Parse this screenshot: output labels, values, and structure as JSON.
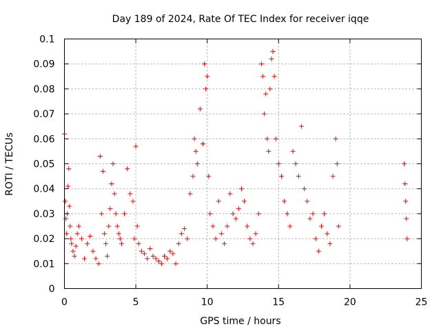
{
  "chart_data": {
    "type": "scatter",
    "title": "Day 189 of 2024, Rate Of TEC Index for receiver iqqe",
    "xlabel": "GPS time / hours",
    "ylabel": "ROTI / TECUs",
    "xlim": [
      0,
      25
    ],
    "ylim": [
      0,
      0.1
    ],
    "x_ticks": [
      0,
      5,
      10,
      15,
      20,
      25
    ],
    "y_ticks": [
      0,
      0.01,
      0.02,
      0.03,
      0.04,
      0.05,
      0.06,
      0.07,
      0.08,
      0.09,
      0.1
    ],
    "x_tick_labels": [
      "0",
      "5",
      "10",
      "15",
      "20",
      "25"
    ],
    "y_tick_labels": [
      "0",
      "0.01",
      "0.02",
      "0.03",
      "0.04",
      "0.05",
      "0.06",
      "0.07",
      "0.08",
      "0.09",
      "0.1"
    ],
    "grid": true,
    "marker": "+",
    "marker_color": "#ff0000",
    "series": [
      {
        "x": [
          0.0,
          0.05,
          0.1,
          0.15,
          0.2,
          0.25,
          0.3,
          0.35,
          0.4,
          0.45,
          0.5,
          0.6,
          0.7,
          0.8,
          0.9,
          1.0,
          1.2,
          1.4,
          1.6,
          1.8,
          2.0,
          2.2,
          2.4,
          2.5,
          2.6,
          2.7,
          2.8,
          2.9,
          3.0,
          3.1,
          3.2,
          3.3,
          3.4,
          3.5,
          3.6,
          3.7,
          3.8,
          3.9,
          4.0,
          4.2,
          4.4,
          4.6,
          4.8,
          4.9,
          5.0,
          5.1,
          5.2,
          5.4,
          5.6,
          5.8,
          6.0,
          6.2,
          6.4,
          6.6,
          6.8,
          7.0,
          7.2,
          7.4,
          7.6,
          7.8,
          8.0,
          8.2,
          8.4,
          8.6,
          8.8,
          9.0,
          9.1,
          9.2,
          9.3,
          9.5,
          9.7,
          9.8,
          9.9,
          10.0,
          10.1,
          10.2,
          10.4,
          10.6,
          10.8,
          11.0,
          11.2,
          11.4,
          11.6,
          11.8,
          12.0,
          12.2,
          12.4,
          12.6,
          12.8,
          13.0,
          13.2,
          13.4,
          13.6,
          13.8,
          13.9,
          14.0,
          14.1,
          14.2,
          14.3,
          14.4,
          14.5,
          14.6,
          14.7,
          14.8,
          15.0,
          15.2,
          15.4,
          15.6,
          15.8,
          16.0,
          16.2,
          16.4,
          16.6,
          16.8,
          17.0,
          17.2,
          17.4,
          17.6,
          17.8,
          18.0,
          18.2,
          18.4,
          18.6,
          18.8,
          19.0,
          19.1,
          19.2,
          23.8,
          23.85,
          23.9,
          23.95,
          24.0
        ],
        "y": [
          0.062,
          0.035,
          0.028,
          0.022,
          0.03,
          0.041,
          0.048,
          0.033,
          0.025,
          0.02,
          0.018,
          0.015,
          0.013,
          0.017,
          0.022,
          0.025,
          0.02,
          0.012,
          0.018,
          0.021,
          0.015,
          0.012,
          0.01,
          0.053,
          0.03,
          0.047,
          0.022,
          0.018,
          0.013,
          0.025,
          0.032,
          0.042,
          0.05,
          0.038,
          0.03,
          0.025,
          0.022,
          0.02,
          0.018,
          0.03,
          0.048,
          0.038,
          0.035,
          0.02,
          0.057,
          0.025,
          0.018,
          0.015,
          0.014,
          0.012,
          0.016,
          0.013,
          0.012,
          0.011,
          0.01,
          0.013,
          0.012,
          0.015,
          0.014,
          0.01,
          0.018,
          0.022,
          0.024,
          0.02,
          0.038,
          0.045,
          0.06,
          0.055,
          0.05,
          0.072,
          0.058,
          0.09,
          0.08,
          0.085,
          0.045,
          0.03,
          0.025,
          0.02,
          0.035,
          0.022,
          0.018,
          0.025,
          0.038,
          0.03,
          0.028,
          0.032,
          0.04,
          0.035,
          0.025,
          0.02,
          0.018,
          0.022,
          0.03,
          0.09,
          0.085,
          0.07,
          0.078,
          0.06,
          0.055,
          0.08,
          0.092,
          0.095,
          0.085,
          0.06,
          0.05,
          0.045,
          0.035,
          0.03,
          0.025,
          0.055,
          0.05,
          0.045,
          0.065,
          0.04,
          0.035,
          0.028,
          0.03,
          0.02,
          0.015,
          0.025,
          0.03,
          0.022,
          0.018,
          0.045,
          0.06,
          0.05,
          0.025,
          0.05,
          0.042,
          0.035,
          0.028,
          0.02
        ]
      }
    ]
  }
}
